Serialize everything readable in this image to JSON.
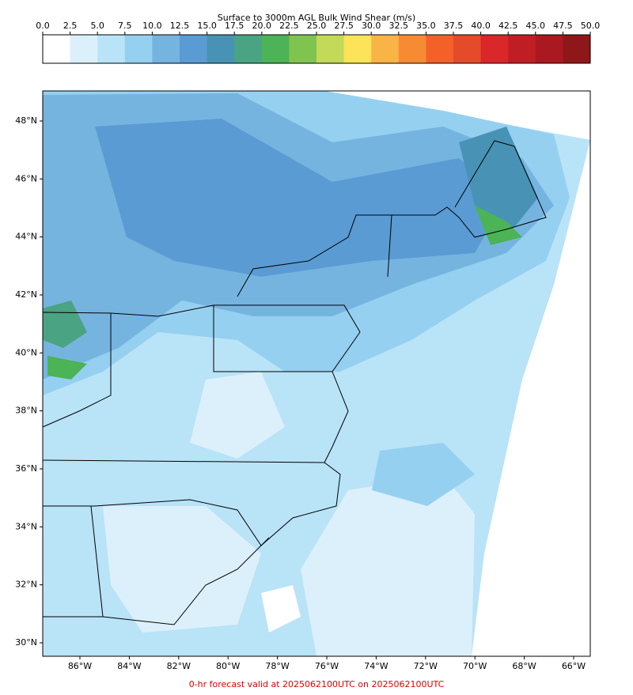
{
  "colorbar": {
    "title": "Surface to 3000m AGL Bulk Wind Shear (m/s)",
    "ticks": [
      {
        "value": 0,
        "label": "0.0"
      },
      {
        "value": 2.5,
        "label": "2.5"
      },
      {
        "value": 5,
        "label": "5.0"
      },
      {
        "value": 7.5,
        "label": "7.5"
      },
      {
        "value": 10,
        "label": "10.0"
      },
      {
        "value": 12.5,
        "label": "12.5"
      },
      {
        "value": 15,
        "label": "15.0"
      },
      {
        "value": 17.5,
        "label": "17.5"
      },
      {
        "value": 20,
        "label": "20.0"
      },
      {
        "value": 22.5,
        "label": "22.5"
      },
      {
        "value": 25,
        "label": "25.0"
      },
      {
        "value": 27.5,
        "label": "27.5"
      },
      {
        "value": 30,
        "label": "30.0"
      },
      {
        "value": 32.5,
        "label": "32.5"
      },
      {
        "value": 35,
        "label": "35.0"
      },
      {
        "value": 37.5,
        "label": "37.5"
      },
      {
        "value": 40,
        "label": "40.0"
      },
      {
        "value": 42.5,
        "label": "42.5"
      },
      {
        "value": 45,
        "label": "45.0"
      },
      {
        "value": 47.5,
        "label": "47.5"
      },
      {
        "value": 50,
        "label": "50.0"
      }
    ],
    "colors": [
      "#ffffff",
      "#dcf0fb",
      "#b9e3f7",
      "#95d0f1",
      "#76b4e0",
      "#5a9bd3",
      "#4893b5",
      "#4aa382",
      "#4cb356",
      "#80c450",
      "#c2d95a",
      "#fce35a",
      "#f9b447",
      "#f78b34",
      "#f46128",
      "#e34b2a",
      "#d9272a",
      "#c01e25",
      "#a9191f",
      "#8e1719"
    ]
  },
  "map": {
    "lat_ticks": [
      {
        "value": 48,
        "label": "48°N"
      },
      {
        "value": 46,
        "label": "46°N"
      },
      {
        "value": 44,
        "label": "44°N"
      },
      {
        "value": 42,
        "label": "42°N"
      },
      {
        "value": 40,
        "label": "40°N"
      },
      {
        "value": 38,
        "label": "38°N"
      },
      {
        "value": 36,
        "label": "36°N"
      },
      {
        "value": 34,
        "label": "34°N"
      },
      {
        "value": 32,
        "label": "32°N"
      },
      {
        "value": 30,
        "label": "30°N"
      }
    ],
    "lon_ticks": [
      {
        "value": -86,
        "label": "86°W"
      },
      {
        "value": -84,
        "label": "84°W"
      },
      {
        "value": -82,
        "label": "82°W"
      },
      {
        "value": -80,
        "label": "80°W"
      },
      {
        "value": -78,
        "label": "78°W"
      },
      {
        "value": -76,
        "label": "76°W"
      },
      {
        "value": -74,
        "label": "74°W"
      },
      {
        "value": -72,
        "label": "72°W"
      },
      {
        "value": -70,
        "label": "70°W"
      },
      {
        "value": -68,
        "label": "68°W"
      },
      {
        "value": -66,
        "label": "66°W"
      }
    ]
  },
  "footer": "0-hr forecast valid at 2025062100UTC on 2025062100UTC"
}
